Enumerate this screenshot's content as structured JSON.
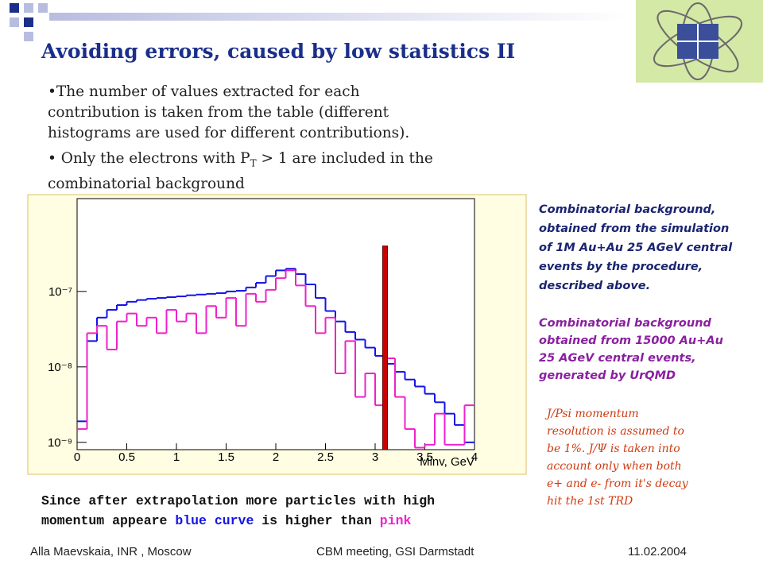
{
  "header": {
    "title": "Avoiding errors, caused by low statistics  II"
  },
  "bullets": [
    {
      "lines": [
        "•The number of values extracted for each",
        "contribution is taken from the table (different",
        "histograms are used for different contributions)."
      ]
    },
    {
      "lines": [
        "• Only the electrons with P",
        "T",
        " > 1 are included in the",
        "combinatorial background"
      ]
    }
  ],
  "chart": {
    "type": "histogram",
    "bins": [
      0,
      0.1,
      0.2,
      0.3,
      0.4,
      0.5,
      0.6,
      0.7,
      0.8,
      0.9,
      1,
      1.1,
      1.2,
      1.3,
      1.4,
      1.5,
      1.6,
      1.7,
      1.8,
      1.9,
      2,
      2.1,
      2.2,
      2.3,
      2.4,
      2.5,
      2.6,
      2.7,
      2.8,
      2.9,
      3,
      3.1,
      3.2,
      3.3,
      3.4,
      3.5,
      3.6,
      3.7,
      3.8,
      3.9,
      4
    ],
    "series": [
      {
        "color": "#1414e6",
        "values": [
          1.9e-09,
          2.2e-08,
          4.5e-08,
          5.7e-08,
          6.6e-08,
          7.3e-08,
          7.7e-08,
          8e-08,
          8.2e-08,
          8.4e-08,
          8.6e-08,
          8.9e-08,
          9.1e-08,
          9.3e-08,
          9.5e-08,
          1e-07,
          1.02e-07,
          1.13e-07,
          1.3e-07,
          1.6e-07,
          1.9e-07,
          2e-07,
          1.7e-07,
          1.24e-07,
          8.2e-08,
          5.5e-08,
          4e-08,
          2.9e-08,
          2.3e-08,
          1.8e-08,
          1.4e-08,
          1.1e-08,
          8.6e-09,
          6.8e-09,
          5.5e-09,
          4.4e-09,
          3.4e-09,
          2.4e-09,
          1.7e-09,
          1e-09
        ]
      },
      {
        "color": "#ee22cc",
        "values": [
          1.5e-09,
          2.8e-08,
          3.5e-08,
          1.7e-08,
          4e-08,
          5.1e-08,
          3.5e-08,
          4.5e-08,
          2.8e-08,
          5.7e-08,
          4e-08,
          5.1e-08,
          2.8e-08,
          6.4e-08,
          4.5e-08,
          8.2e-08,
          3.5e-08,
          9.3e-08,
          7.3e-08,
          1.05e-07,
          1.5e-07,
          1.9e-07,
          1.2e-07,
          6.4e-08,
          2.8e-08,
          4.5e-08,
          8.2e-09,
          2.2e-08,
          4e-09,
          8.2e-09,
          3.1e-09,
          1.3e-08,
          4e-09,
          1.5e-09,
          8.5e-10,
          9.3e-10,
          2.4e-09,
          9.3e-10,
          9.3e-10,
          3.1e-09
        ]
      }
    ],
    "peak": {
      "x": 3.1,
      "value": 4e-07,
      "color": "#cc0000"
    },
    "xlim": [
      0,
      4
    ],
    "xticks": [
      0,
      0.5,
      1,
      1.5,
      2,
      2.5,
      3,
      3.5,
      4
    ],
    "ylim": [
      8e-10,
      1.7e-06
    ],
    "log_y": true,
    "yticks": [
      {
        "value": 1e-09,
        "label": "10⁻⁹"
      },
      {
        "value": 1e-08,
        "label": "10⁻⁸"
      },
      {
        "value": 1e-07,
        "label": "10⁻⁷"
      }
    ],
    "x_label": "Minv, GeV"
  },
  "annotations": [
    {
      "lines": [
        "Combinatorial background,",
        "obtained from the simulation",
        "of 1M Au+Au 25 AGeV central",
        "events by the procedure,",
        "described above."
      ]
    },
    {
      "lines": [
        "Combinatorial background",
        "obtained from 15000 Au+Au",
        "25 AGeV central events,",
        "generated by UrQMD"
      ]
    },
    {
      "lines": [
        "J/Psi momentum",
        "resolution is assumed to",
        "be 1%. J/Ψ  is taken into",
        "account only when both",
        "e+ and e- from it's decay",
        "hit the 1st TRD"
      ]
    }
  ],
  "note": {
    "line1": "Since after extrapolation more particles with high",
    "line2": "momentum appeare ",
    "blue": "blue curve",
    "middle": " is higher than ",
    "pink": "pink"
  },
  "footer": {
    "left": "Alla Maevskaia, INR , Moscow",
    "center": "CBM meeting, GSI Darmstadt",
    "right": "11.02.2004"
  }
}
